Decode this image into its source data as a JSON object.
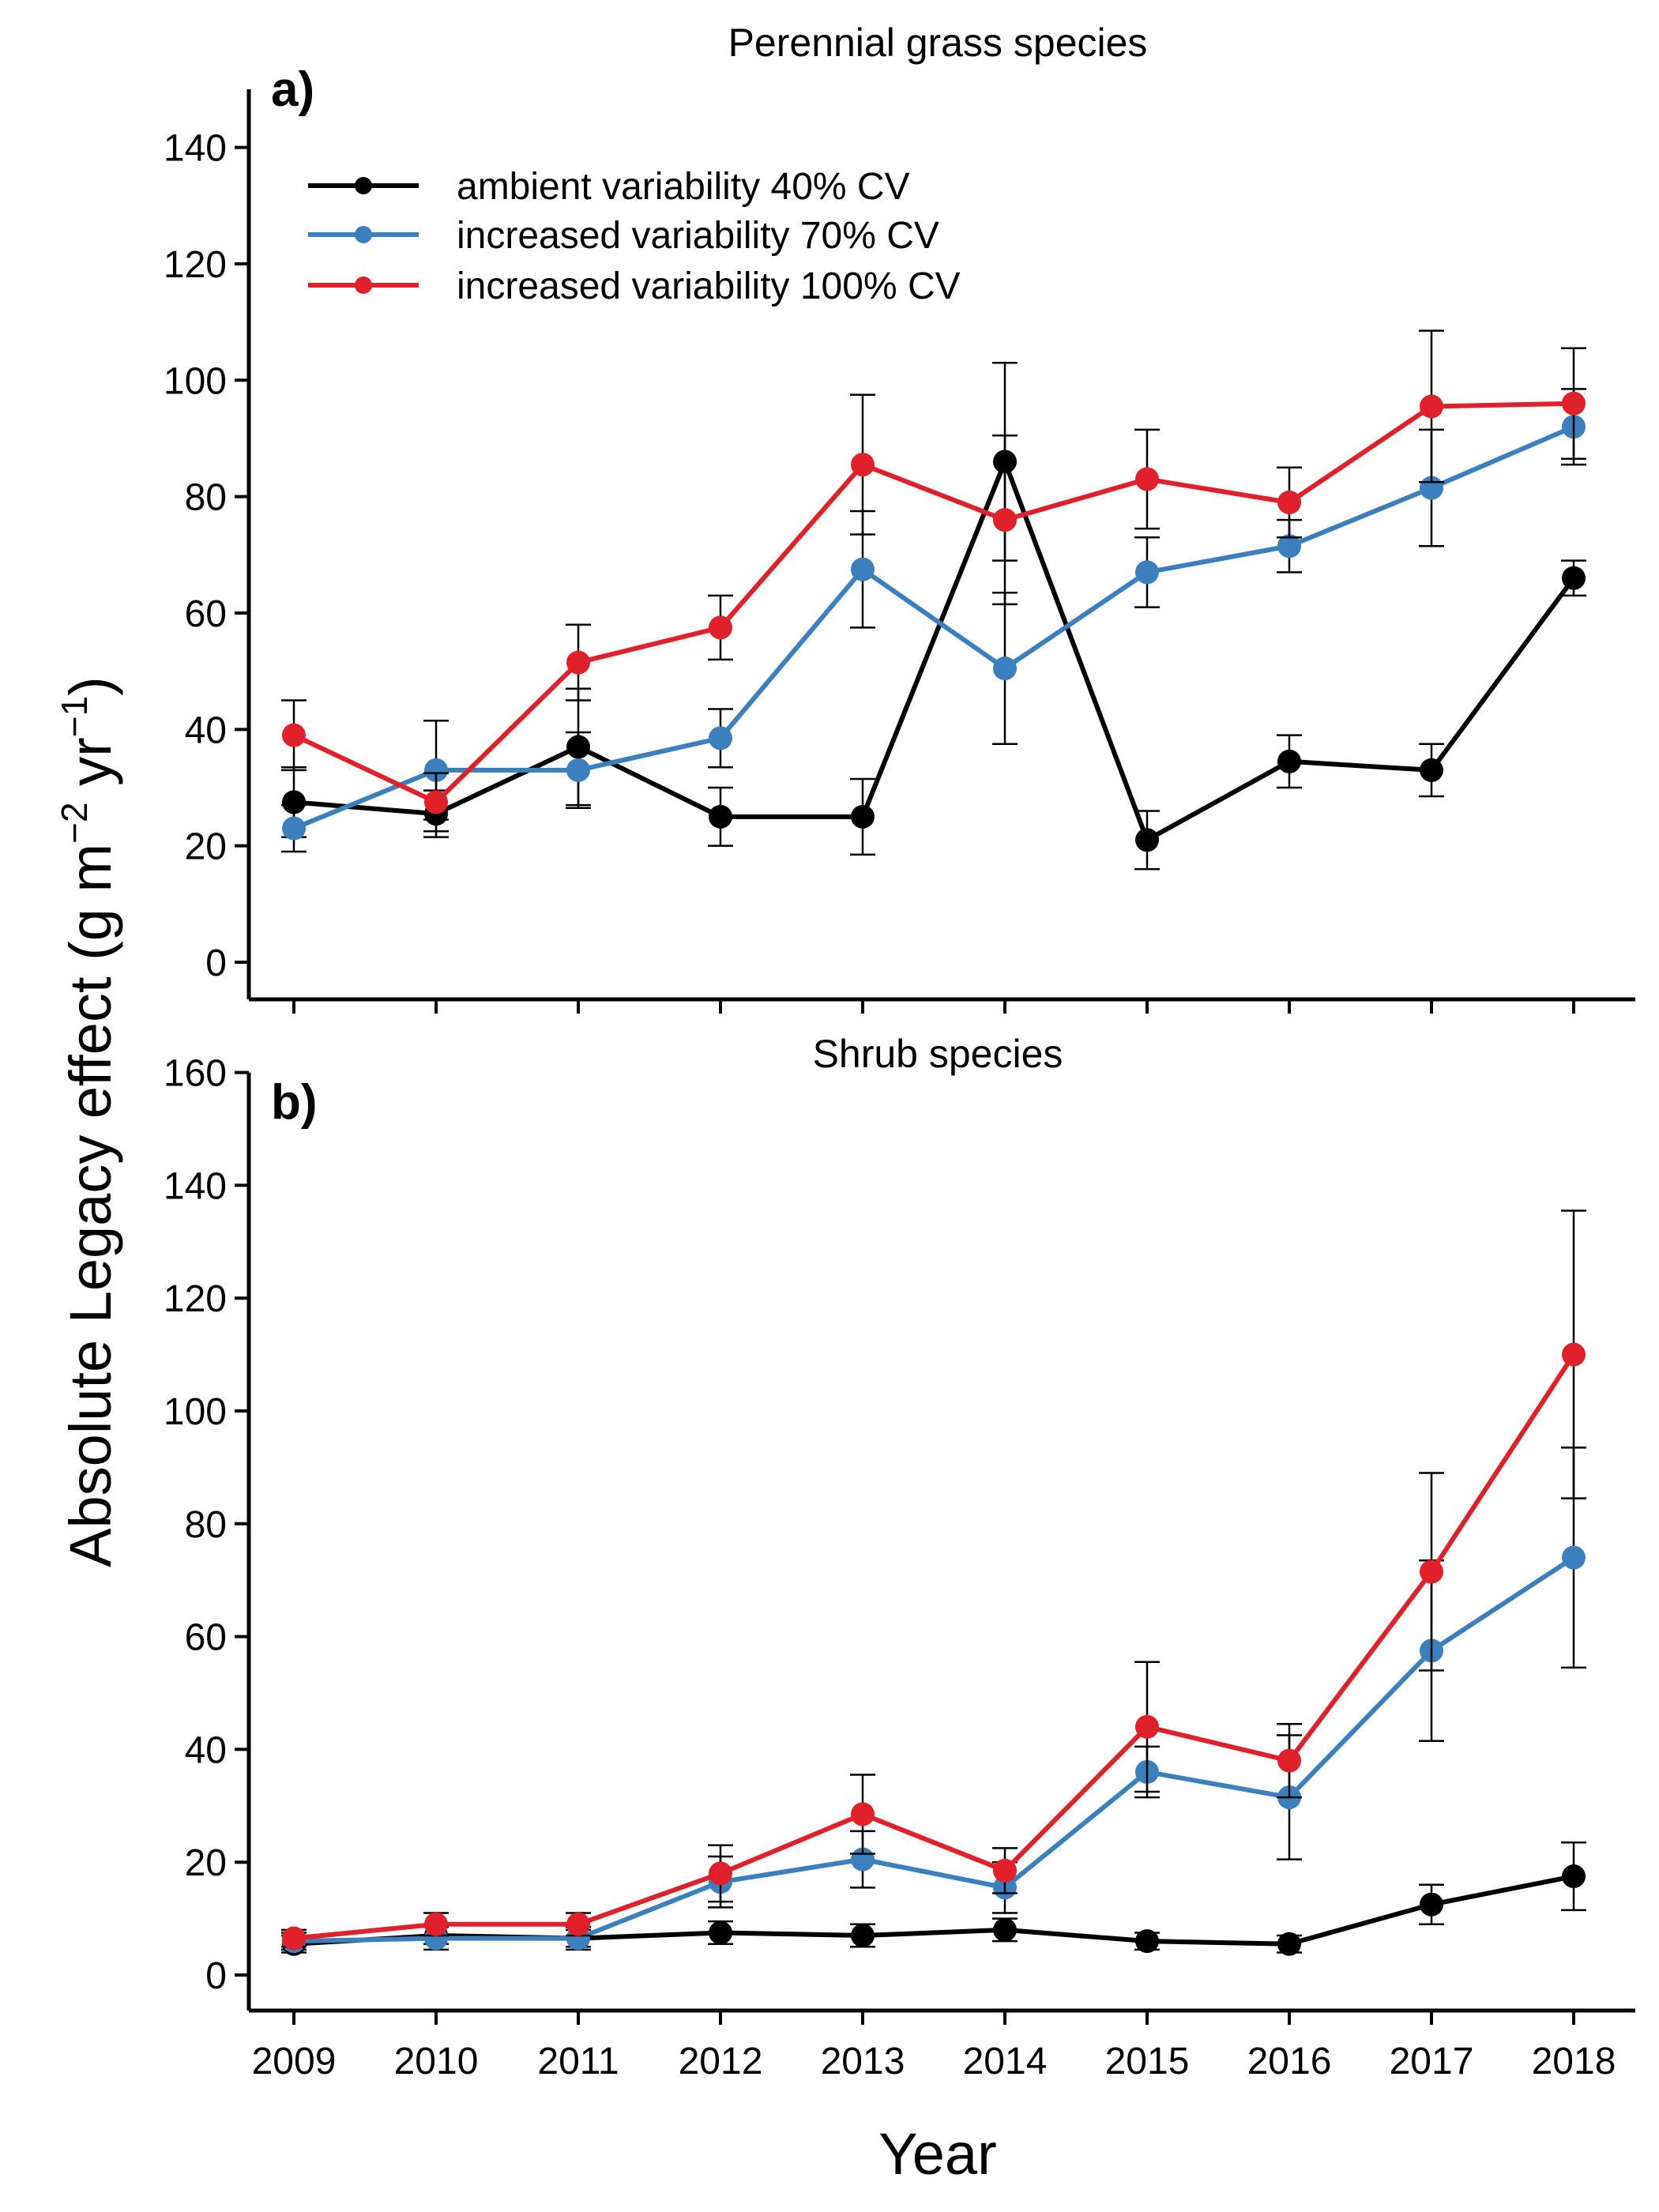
{
  "figure": {
    "ylabel": "Absolute Legacy effect (g  m",
    "ylabel_sup1": "−2",
    "ylabel_mid": " yr",
    "ylabel_sup2": "−1",
    "ylabel_end": ")",
    "xlabel": "Year"
  },
  "legend": [
    {
      "label": "ambient variability 40% CV",
      "color": "#000000"
    },
    {
      "label": "increased variability 70% CV",
      "color": "#3b7fbd"
    },
    {
      "label": "increased variability 100% CV",
      "color": "#e0202a"
    }
  ],
  "chart_data": [
    {
      "type": "line",
      "tag": "a)",
      "title": "Perennial grass species",
      "x": [
        2009,
        2010,
        2011,
        2012,
        2013,
        2014,
        2015,
        2016,
        2017,
        2018
      ],
      "ylim": [
        0,
        150
      ],
      "yticks": [
        0,
        20,
        40,
        60,
        80,
        100,
        120,
        140
      ],
      "legend_position": "top-left",
      "grid": false,
      "series": [
        {
          "name": "ambient variability 40% CV",
          "color": "#000000",
          "values": [
            27.5,
            25.5,
            37,
            25,
            25,
            86,
            21,
            34.5,
            33,
            66
          ],
          "errors": [
            6,
            4,
            10,
            5,
            6.5,
            17,
            5,
            4.5,
            4.5,
            3
          ]
        },
        {
          "name": "increased variability 70% CV",
          "color": "#3b7fbd",
          "values": [
            23,
            33,
            33,
            38.5,
            67.5,
            50.5,
            67,
            71.5,
            81.5,
            92
          ],
          "errors": [
            4,
            8.5,
            6.5,
            5,
            10,
            13,
            6,
            4.5,
            10,
            6.5
          ]
        },
        {
          "name": "increased variability 100% CV",
          "color": "#e0202a",
          "values": [
            39,
            27.5,
            51.5,
            57.5,
            85.5,
            76,
            83,
            79,
            95.5,
            96
          ],
          "errors": [
            6,
            5,
            6.5,
            5.5,
            12,
            14.5,
            8.5,
            6,
            13,
            9.5
          ]
        }
      ]
    },
    {
      "type": "line",
      "tag": "b)",
      "title": "Shrub species",
      "x": [
        2009,
        2010,
        2011,
        2012,
        2013,
        2014,
        2015,
        2016,
        2017,
        2018
      ],
      "ylim": [
        0,
        160
      ],
      "yticks": [
        0,
        20,
        40,
        60,
        80,
        100,
        120,
        140,
        160
      ],
      "grid": false,
      "series": [
        {
          "name": "ambient variability 40% CV",
          "color": "#000000",
          "values": [
            5.5,
            7,
            6.5,
            7.5,
            7,
            8,
            6,
            5.5,
            12.5,
            17.5
          ],
          "errors": [
            1.5,
            1.5,
            1.5,
            2,
            2,
            2,
            1.5,
            1.5,
            3.5,
            6
          ]
        },
        {
          "name": "increased variability 70% CV",
          "color": "#3b7fbd",
          "values": [
            6,
            6.5,
            6.5,
            16.5,
            20.5,
            15.5,
            36,
            31.5,
            57.5,
            74
          ],
          "errors": [
            1.5,
            2,
            2,
            4.5,
            5,
            4.5,
            4.5,
            11,
            16,
            19.5
          ]
        },
        {
          "name": "increased variability 100% CV",
          "color": "#e0202a",
          "values": [
            6.5,
            9,
            9,
            18,
            28.5,
            18.5,
            44,
            38,
            71.5,
            110
          ],
          "errors": [
            1.5,
            2,
            2,
            5,
            7,
            4,
            11.5,
            6.5,
            17.5,
            25.5
          ]
        }
      ]
    }
  ]
}
